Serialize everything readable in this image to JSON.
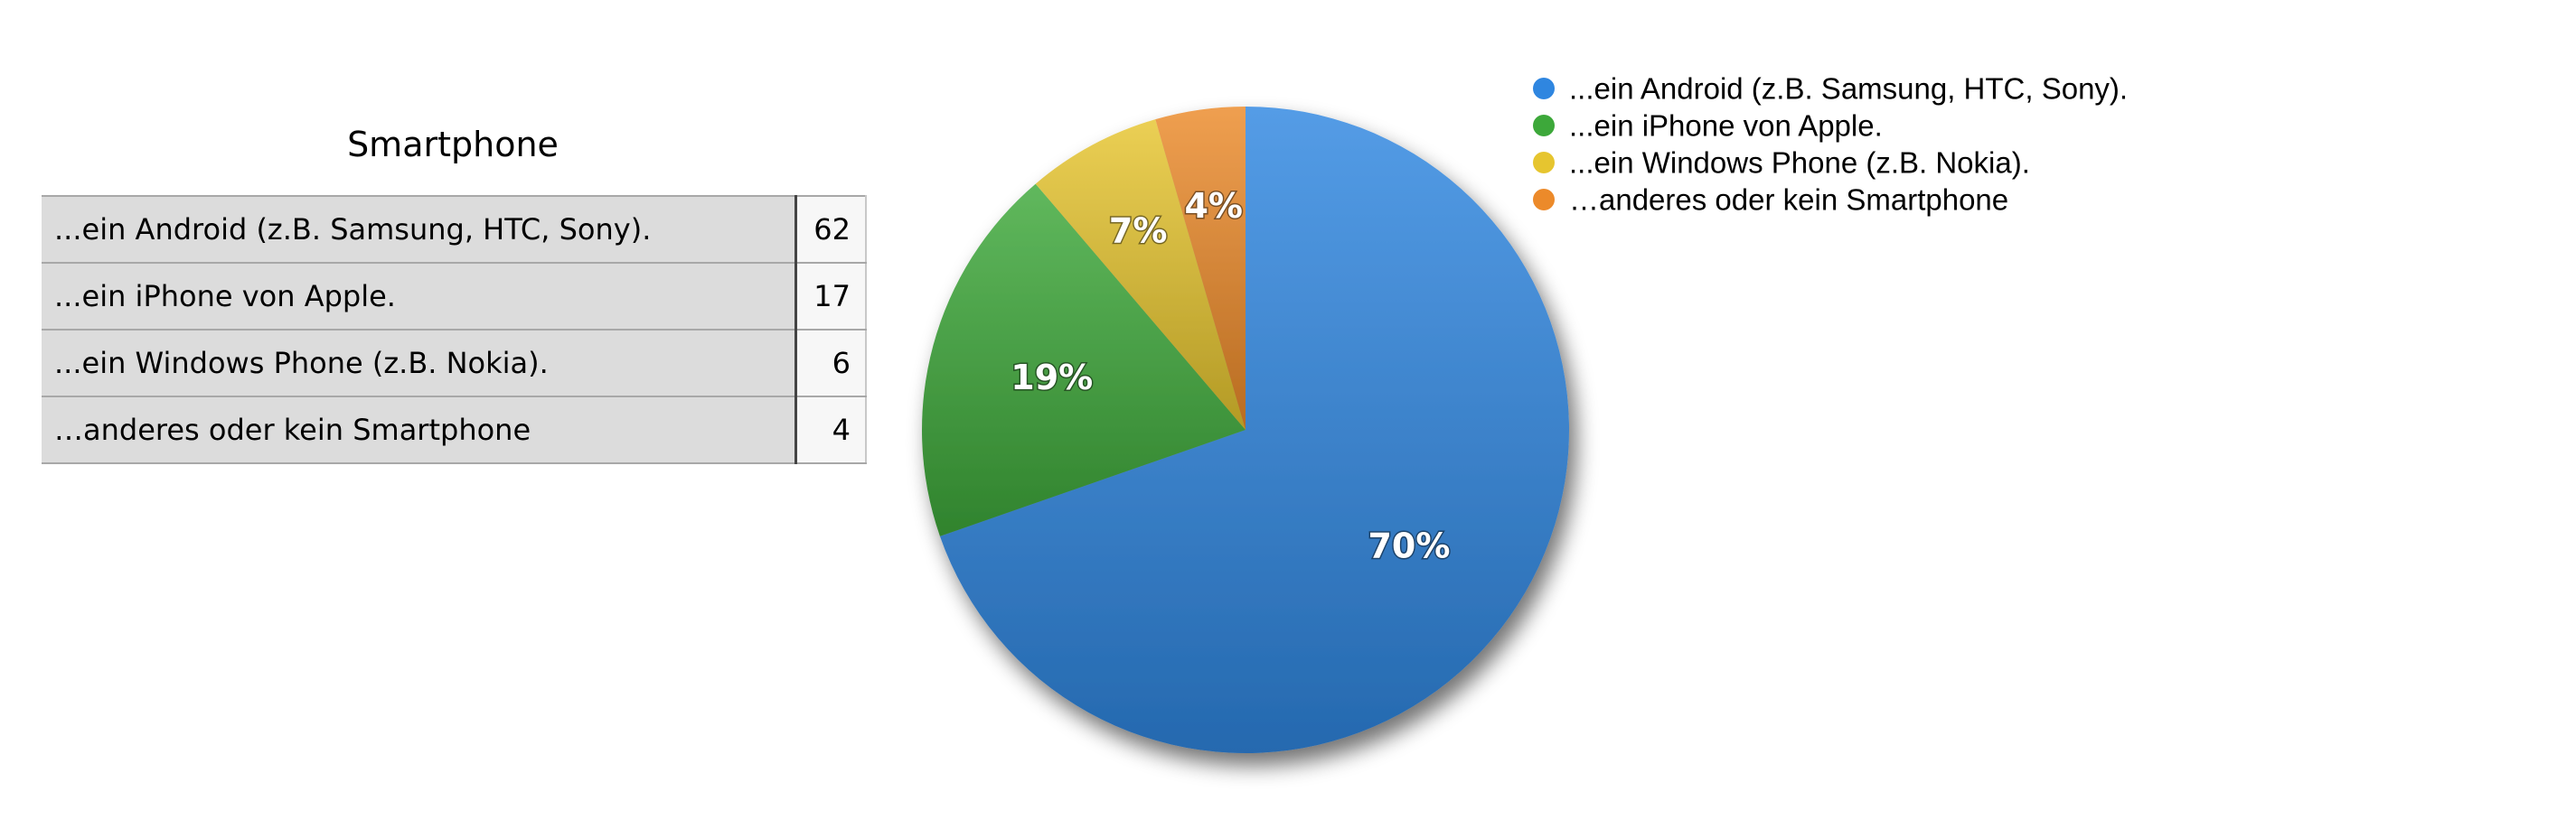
{
  "table": {
    "title": "Smartphone",
    "rows": [
      {
        "label": "...ein Android (z.B. Samsung, HTC, Sony).",
        "value": "62"
      },
      {
        "label": "...ein iPhone von Apple.",
        "value": "17"
      },
      {
        "label": "...ein Windows Phone (z.B. Nokia).",
        "value": "6"
      },
      {
        "label": "…anderes oder kein Smartphone",
        "value": "4"
      }
    ]
  },
  "chart_data": {
    "type": "pie",
    "title": "",
    "categories": [
      "...ein Android (z.B. Samsung, HTC, Sony).",
      "...ein iPhone von Apple.",
      "...ein Windows Phone (z.B. Nokia).",
      "…anderes oder kein Smartphone"
    ],
    "values": [
      62,
      17,
      6,
      4
    ],
    "data_labels": [
      "70%",
      "19%",
      "7%",
      "4%"
    ],
    "colors": [
      "#2f86e0",
      "#3da83a",
      "#e6c52f",
      "#ec8a2a"
    ],
    "legend_position": "top-right"
  }
}
